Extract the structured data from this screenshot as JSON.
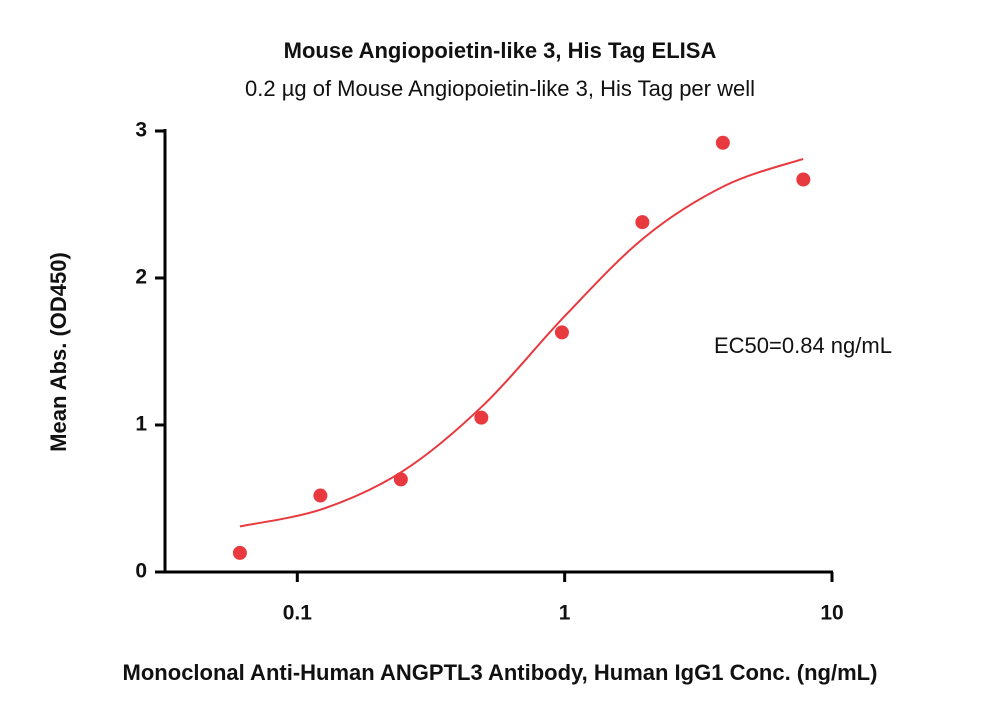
{
  "chart_data": {
    "type": "scatter",
    "title": "Mouse Angiopoietin-like 3, His Tag ELISA",
    "subtitle": "0.2 µg of Mouse Angiopoietin-like 3, His Tag per well",
    "x_label": "Monoclonal Anti-Human ANGPTL3 Antibody, Human IgG1 Conc. (ng/mL)",
    "y_label": "Mean Abs. (OD450)",
    "annotation": "EC50=0.84 ng/mL",
    "x_scale": "log",
    "xlim": [
      0.032,
      10
    ],
    "xticks": [
      0.1,
      1,
      10
    ],
    "ylim": [
      0,
      3
    ],
    "yticks": [
      0,
      1,
      2,
      3
    ],
    "series": [
      {
        "color": "#e8393f",
        "x": [
          0.061,
          0.122,
          0.244,
          0.488,
          0.977,
          1.953,
          3.906,
          7.8125
        ],
        "values": [
          0.13,
          0.52,
          0.63,
          1.05,
          1.63,
          2.38,
          2.92,
          2.67
        ]
      },
      {
        "color": "#e8393f",
        "line": true,
        "x": [
          0.061,
          0.125,
          0.25,
          0.5,
          1,
          2,
          4,
          7.8
        ],
        "values": [
          0.31,
          0.43,
          0.69,
          1.14,
          1.74,
          2.28,
          2.63,
          2.81
        ]
      }
    ]
  }
}
